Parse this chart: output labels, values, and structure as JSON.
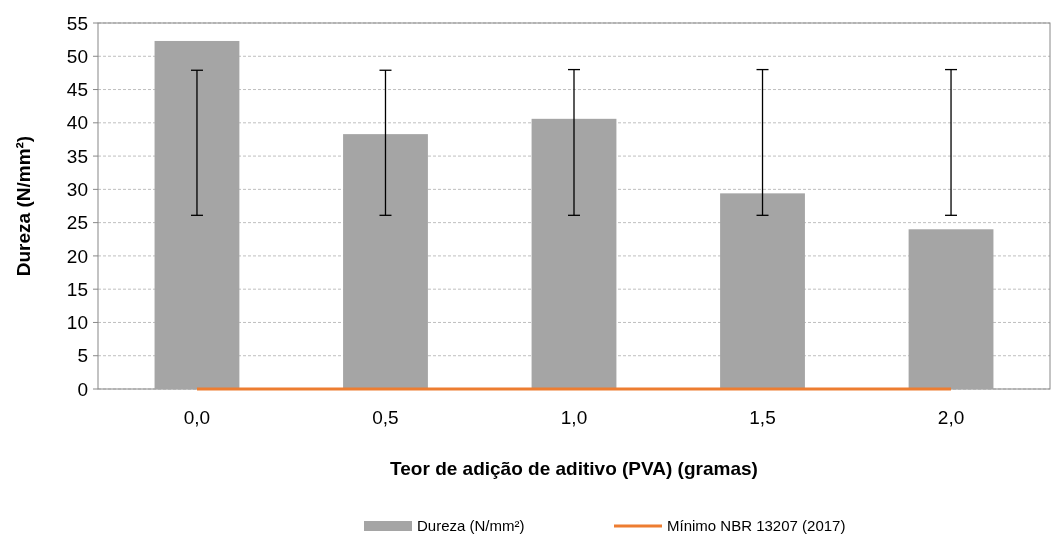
{
  "chart_data": {
    "type": "bar",
    "xlabel": "Teor de adição de aditivo (PVA) (gramas)",
    "ylabel": "Dureza (N/mm²)",
    "categories": [
      "0,0",
      "0,5",
      "1,0",
      "1,5",
      "2,0"
    ],
    "series": [
      {
        "name": "Dureza (N/mm²)",
        "color": "#a5a5a5",
        "values": [
          52.3,
          38.3,
          40.6,
          29.4,
          24.0
        ],
        "errors": [
          [
            26.1,
            47.9
          ],
          [
            26.1,
            47.9
          ],
          [
            26.1,
            48.0
          ],
          [
            26.1,
            48.0
          ],
          [
            26.1,
            48.0
          ]
        ]
      },
      {
        "name": "Mínimo NBR 13207 (2017)",
        "type": "line",
        "color": "#ed7d31",
        "values": [
          0,
          0,
          0,
          0,
          0
        ]
      }
    ],
    "ylim": [
      0,
      55
    ],
    "yticks": [
      0,
      5,
      10,
      15,
      20,
      25,
      30,
      35,
      40,
      45,
      50,
      55
    ],
    "grid": "y",
    "legend": "bottom"
  }
}
